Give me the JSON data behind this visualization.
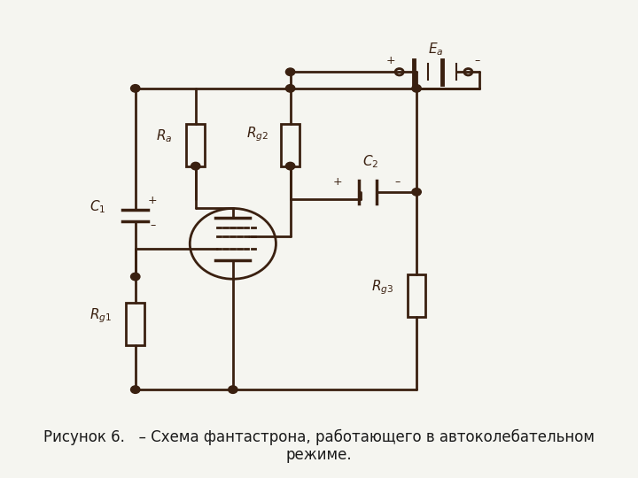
{
  "bg_color": "#f5f5f0",
  "line_color": "#3a2010",
  "line_width": 2.0,
  "caption": "Рисунок 6.   – Схема фантастрона, работающего в автоколебательном\nрежиме.",
  "caption_fontsize": 12,
  "fig_width": 7.2,
  "fig_height": 5.4,
  "dpi": 100
}
